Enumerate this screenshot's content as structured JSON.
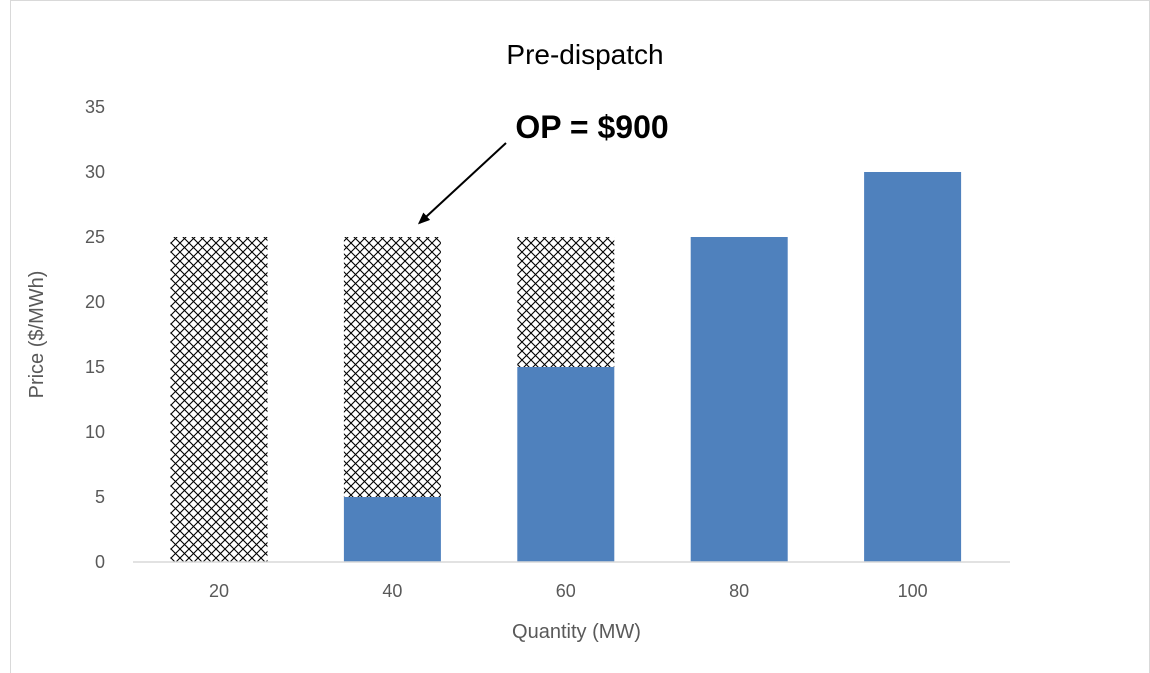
{
  "chart_data": {
    "type": "bar",
    "title": "Pre-dispatch",
    "xlabel": "Quantity (MW)",
    "ylabel": "Price ($/MWh)",
    "categories": [
      "20",
      "40",
      "60",
      "80",
      "100"
    ],
    "series": [
      {
        "name": "",
        "values": [
          0,
          5,
          15,
          25,
          30
        ]
      },
      {
        "name": "",
        "values": [
          25,
          20,
          10,
          0,
          0
        ]
      }
    ],
    "stacked": true,
    "ylim": [
      0,
      35
    ],
    "yticks": [
      0,
      5,
      10,
      15,
      20,
      25,
      30,
      35
    ],
    "grid": false,
    "legend": "none",
    "annotation": {
      "text": "OP = $900",
      "points_to_category": "40",
      "points_to_value": 25
    },
    "colors": {
      "bar": "#4f81bd",
      "hatch": "#000000"
    }
  }
}
